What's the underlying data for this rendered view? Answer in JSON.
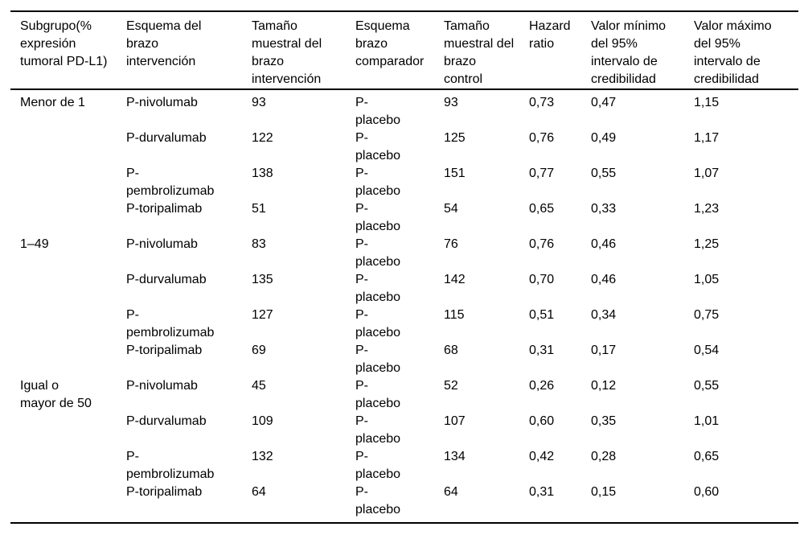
{
  "table": {
    "columns": [
      "Subgrupo(%\nexpresión\ntumoral PD-L1)",
      "Esquema del\nbrazo\nintervención",
      "Tamaño\nmuestral del\nbrazo\nintervención",
      "Esquema\nbrazo\ncomparador",
      "Tamaño\nmuestral del\nbrazo\ncontrol",
      "Hazard\nratio",
      "Valor mínimo\ndel 95%\nintervalo de\ncredibilidad",
      "Valor máximo\ndel 95%\nintervalo de\ncredibilidad"
    ],
    "groups": [
      {
        "subgroup": "Menor de 1",
        "rows": [
          {
            "intervention": "P-nivolumab",
            "n_intervention": "93",
            "comparator": "P-\nplacebo",
            "n_control": "93",
            "hazard_ratio": "0,73",
            "ci_min": "0,47",
            "ci_max": "1,15"
          },
          {
            "intervention": "P-durvalumab",
            "n_intervention": "122",
            "comparator": "P-\nplacebo",
            "n_control": "125",
            "hazard_ratio": "0,76",
            "ci_min": "0,49",
            "ci_max": "1,17"
          },
          {
            "intervention": "P-\npembrolizumab",
            "n_intervention": "138",
            "comparator": "P-\nplacebo",
            "n_control": "151",
            "hazard_ratio": "0,77",
            "ci_min": "0,55",
            "ci_max": "1,07"
          },
          {
            "intervention": "P-toripalimab",
            "n_intervention": "51",
            "comparator": "P-\nplacebo",
            "n_control": "54",
            "hazard_ratio": "0,65",
            "ci_min": "0,33",
            "ci_max": "1,23"
          }
        ]
      },
      {
        "subgroup": "1–49",
        "rows": [
          {
            "intervention": "P-nivolumab",
            "n_intervention": "83",
            "comparator": "P-\nplacebo",
            "n_control": "76",
            "hazard_ratio": "0,76",
            "ci_min": "0,46",
            "ci_max": "1,25"
          },
          {
            "intervention": "P-durvalumab",
            "n_intervention": "135",
            "comparator": "P-\nplacebo",
            "n_control": "142",
            "hazard_ratio": "0,70",
            "ci_min": "0,46",
            "ci_max": "1,05"
          },
          {
            "intervention": "P-\npembrolizumab",
            "n_intervention": "127",
            "comparator": "P-\nplacebo",
            "n_control": "115",
            "hazard_ratio": "0,51",
            "ci_min": "0,34",
            "ci_max": "0,75"
          },
          {
            "intervention": "P-toripalimab",
            "n_intervention": "69",
            "comparator": "P-\nplacebo",
            "n_control": "68",
            "hazard_ratio": "0,31",
            "ci_min": "0,17",
            "ci_max": "0,54"
          }
        ]
      },
      {
        "subgroup": "Igual o\nmayor de 50",
        "rows": [
          {
            "intervention": "P-nivolumab",
            "n_intervention": "45",
            "comparator": "P-\nplacebo",
            "n_control": "52",
            "hazard_ratio": "0,26",
            "ci_min": "0,12",
            "ci_max": "0,55"
          },
          {
            "intervention": "P-durvalumab",
            "n_intervention": "109",
            "comparator": "P-\nplacebo",
            "n_control": "107",
            "hazard_ratio": "0,60",
            "ci_min": "0,35",
            "ci_max": "1,01"
          },
          {
            "intervention": "P-\npembrolizumab",
            "n_intervention": "132",
            "comparator": "P-\nplacebo",
            "n_control": "134",
            "hazard_ratio": "0,42",
            "ci_min": "0,28",
            "ci_max": "0,65"
          },
          {
            "intervention": "P-toripalimab",
            "n_intervention": "64",
            "comparator": "P-\nplacebo",
            "n_control": "64",
            "hazard_ratio": "0,31",
            "ci_min": "0,15",
            "ci_max": "0,60"
          }
        ]
      }
    ]
  }
}
